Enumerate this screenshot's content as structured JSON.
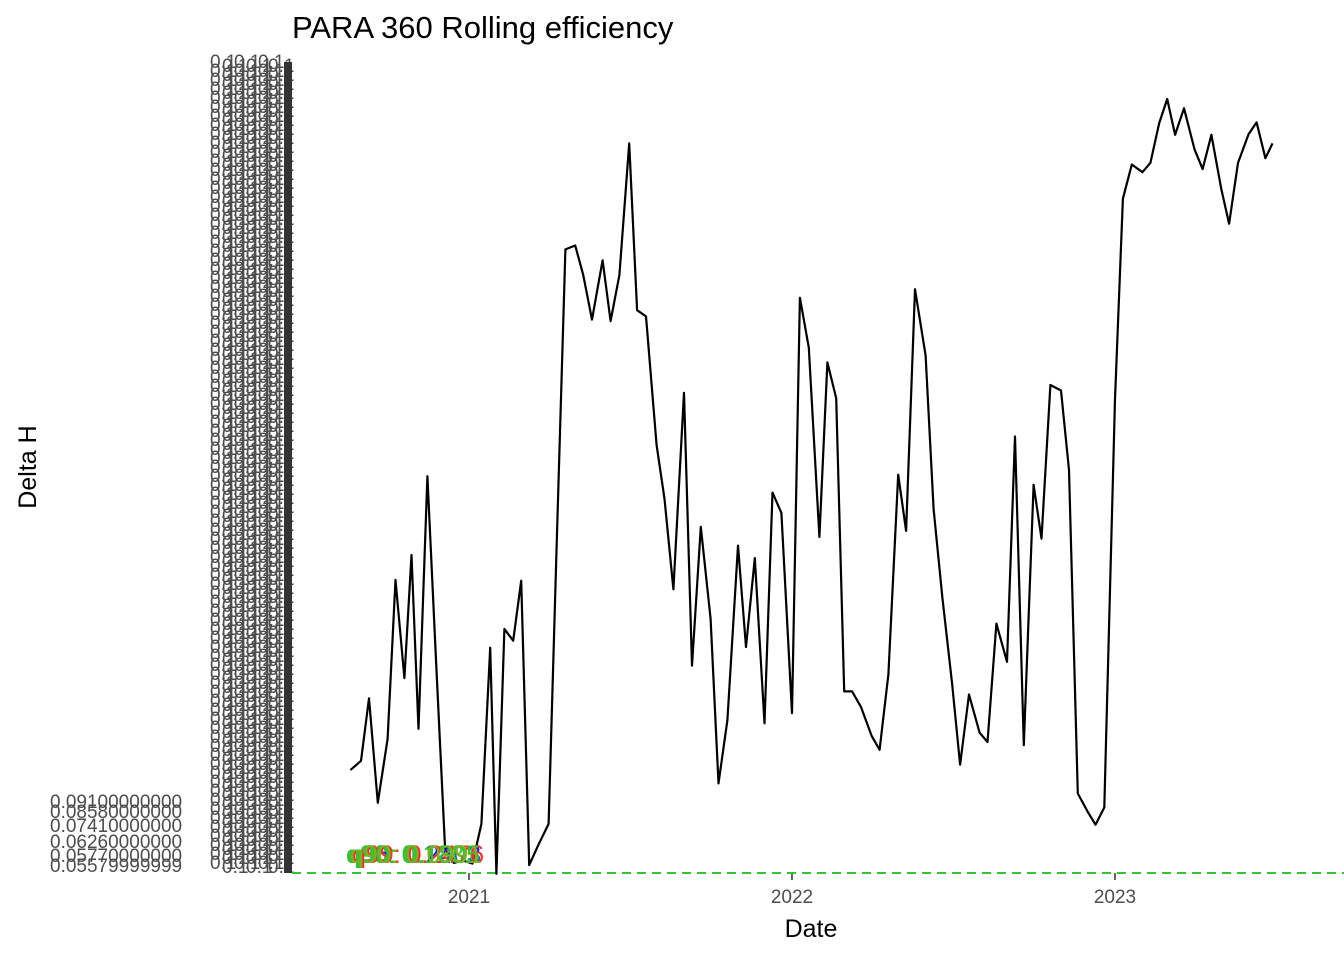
{
  "chart_data": {
    "type": "line",
    "title": "PARA 360 Rolling efficiency",
    "xlabel": "Date",
    "ylabel": "Delta H",
    "x_range": [
      "2020-06-15",
      "2023-09-01"
    ],
    "y_range": [
      0.0557,
      0.16
    ],
    "x_ticks": [
      {
        "date": "2021-01-01",
        "label": "2021"
      },
      {
        "date": "2022-01-01",
        "label": "2022"
      },
      {
        "date": "2023-01-01",
        "label": "2023"
      }
    ],
    "y_tick_labels_readable": [
      "0.09100000000",
      "0.08580000000",
      "0.07410000000",
      "0.06260000000",
      "0.05770000000",
      "0.05579999999"
    ],
    "y_label_stack_text": "0.1",
    "grid": false,
    "legend": "none",
    "reference_line": {
      "name": "q90",
      "value": 0.0557,
      "color": "#2fc62f"
    },
    "quantile_annotations": [
      {
        "text": "q90: 0.1031",
        "color": "#3bbf3b"
      },
      {
        "text": "q95: 0.2403",
        "color": "#1a1aff"
      },
      {
        "text": "q99: 0.2476",
        "color": "#ff2a2a"
      },
      {
        "text": "q90: 0.1805",
        "color": "#2fc62f"
      },
      {
        "text": "q90: 0.0991",
        "color": "#7fb020"
      }
    ],
    "line_color": "#000000",
    "series": [
      {
        "x": [
          "2020-08-20",
          "2020-09-01",
          "2020-09-10",
          "2020-09-20",
          "2020-10-01",
          "2020-10-10",
          "2020-10-20",
          "2020-10-28",
          "2020-11-05",
          "2020-11-15",
          "2020-11-25",
          "2020-12-05",
          "2020-12-15",
          "2020-12-25",
          "2021-01-05",
          "2021-01-15",
          "2021-01-25",
          "2021-02-01",
          "2021-02-10",
          "2021-02-20",
          "2021-03-01",
          "2021-03-10",
          "2021-03-20",
          "2021-04-01",
          "2021-04-10",
          "2021-04-20",
          "2021-05-01",
          "2021-05-10",
          "2021-05-20",
          "2021-06-01",
          "2021-06-10",
          "2021-06-20",
          "2021-07-01",
          "2021-07-10",
          "2021-07-20",
          "2021-08-01",
          "2021-08-10",
          "2021-08-20",
          "2021-09-01",
          "2021-09-10",
          "2021-09-20",
          "2021-10-01",
          "2021-10-10",
          "2021-10-20",
          "2021-11-01",
          "2021-11-10",
          "2021-11-20",
          "2021-12-01",
          "2021-12-10",
          "2021-12-20",
          "2022-01-01",
          "2022-01-10",
          "2022-01-20",
          "2022-02-01",
          "2022-02-10",
          "2022-02-20",
          "2022-03-01",
          "2022-03-10",
          "2022-03-20",
          "2022-04-01",
          "2022-04-10",
          "2022-04-20",
          "2022-05-01",
          "2022-05-10",
          "2022-05-20",
          "2022-06-01",
          "2022-06-10",
          "2022-06-20",
          "2022-07-01",
          "2022-07-10",
          "2022-07-20",
          "2022-08-01",
          "2022-08-10",
          "2022-08-20",
          "2022-09-01",
          "2022-09-10",
          "2022-09-20",
          "2022-10-01",
          "2022-10-10",
          "2022-10-20",
          "2022-11-01",
          "2022-11-10",
          "2022-11-20",
          "2022-12-01",
          "2022-12-10",
          "2022-12-20",
          "2023-01-01",
          "2023-01-10",
          "2023-01-20",
          "2023-02-01",
          "2023-02-10",
          "2023-02-20",
          "2023-03-01",
          "2023-03-10",
          "2023-03-20",
          "2023-04-01",
          "2023-04-10",
          "2023-04-20",
          "2023-05-01",
          "2023-05-10",
          "2023-05-20",
          "2023-06-01",
          "2023-06-10",
          "2023-06-20",
          "2023-06-28"
        ],
        "values": [
          0.0689,
          0.0701,
          0.0781,
          0.0647,
          0.0729,
          0.0933,
          0.0807,
          0.0965,
          0.0742,
          0.1066,
          0.0825,
          0.0588,
          0.057,
          0.0573,
          0.0569,
          0.062,
          0.0846,
          0.0556,
          0.087,
          0.0855,
          0.0932,
          0.0567,
          0.0592,
          0.062,
          0.0975,
          0.1357,
          0.1362,
          0.1325,
          0.1267,
          0.1343,
          0.1265,
          0.1324,
          0.1493,
          0.1279,
          0.1271,
          0.1106,
          0.1037,
          0.0921,
          0.1173,
          0.0823,
          0.1001,
          0.0883,
          0.0672,
          0.0753,
          0.0977,
          0.0847,
          0.0961,
          0.0749,
          0.1045,
          0.1019,
          0.0762,
          0.1295,
          0.1231,
          0.0988,
          0.1212,
          0.1166,
          0.079,
          0.079,
          0.077,
          0.0733,
          0.0715,
          0.0812,
          0.1068,
          0.0996,
          0.1306,
          0.1221,
          0.1024,
          0.091,
          0.08,
          0.0696,
          0.0786,
          0.0737,
          0.0725,
          0.0877,
          0.0828,
          0.1117,
          0.0721,
          0.1055,
          0.0986,
          0.1183,
          0.1176,
          0.1074,
          0.0659,
          0.0636,
          0.0619,
          0.0641,
          0.1165,
          0.1422,
          0.1466,
          0.1456,
          0.1468,
          0.1519,
          0.155,
          0.1504,
          0.1538,
          0.1485,
          0.146,
          0.1504,
          0.1435,
          0.139,
          0.1468,
          0.1505,
          0.152,
          0.1474,
          0.1493
        ]
      }
    ]
  }
}
